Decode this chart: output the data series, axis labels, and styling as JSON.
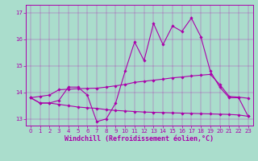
{
  "xlabel": "Windchill (Refroidissement éolien,°C)",
  "bg_color": "#aaddcc",
  "line_color": "#aa00aa",
  "spine_color": "#aa00aa",
  "x": [
    0,
    1,
    2,
    3,
    4,
    5,
    6,
    7,
    8,
    9,
    10,
    11,
    12,
    13,
    14,
    15,
    16,
    17,
    18,
    19,
    20,
    21,
    22,
    23
  ],
  "y_main": [
    13.8,
    13.6,
    13.6,
    13.7,
    14.2,
    14.2,
    13.9,
    12.9,
    13.0,
    13.6,
    14.8,
    15.9,
    15.2,
    16.6,
    15.8,
    16.5,
    16.3,
    16.8,
    16.1,
    14.8,
    14.2,
    13.8,
    13.8,
    13.1
  ],
  "y_upper": [
    13.8,
    13.85,
    13.9,
    14.1,
    14.12,
    14.14,
    14.15,
    14.16,
    14.2,
    14.25,
    14.3,
    14.38,
    14.42,
    14.46,
    14.5,
    14.55,
    14.58,
    14.62,
    14.65,
    14.68,
    14.3,
    13.85,
    13.82,
    13.78
  ],
  "y_lower": [
    13.8,
    13.6,
    13.6,
    13.55,
    13.5,
    13.45,
    13.42,
    13.4,
    13.35,
    13.32,
    13.3,
    13.28,
    13.26,
    13.25,
    13.24,
    13.23,
    13.22,
    13.21,
    13.2,
    13.19,
    13.18,
    13.17,
    13.15,
    13.1
  ],
  "ylim": [
    12.75,
    17.3
  ],
  "yticks": [
    13,
    14,
    15,
    16,
    17
  ],
  "xticks": [
    0,
    1,
    2,
    3,
    4,
    5,
    6,
    7,
    8,
    9,
    10,
    11,
    12,
    13,
    14,
    15,
    16,
    17,
    18,
    19,
    20,
    21,
    22,
    23
  ],
  "tick_fontsize": 5.0,
  "label_fontsize": 6.0,
  "marker": "D",
  "markersize": 1.8,
  "linewidth": 0.8
}
